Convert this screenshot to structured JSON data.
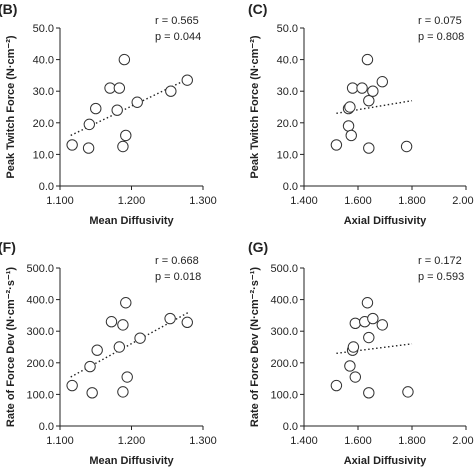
{
  "chart_data": [
    {
      "type": "scatter",
      "panel": "(B)",
      "xlabel": "Mean Diffusivity",
      "ylabel": "Peak Twitch Force (N·cm⁻²)",
      "xlim": [
        1.1,
        1.3
      ],
      "ylim": [
        0,
        50
      ],
      "x_ticks": [
        "1.100",
        "1.200",
        "1.300"
      ],
      "y_ticks": [
        "0.0",
        "10.0",
        "20.0",
        "30.0",
        "40.0",
        "50.0"
      ],
      "stats": [
        "r = 0.565",
        "p = 0.044"
      ],
      "trendline": "dotted",
      "points": [
        {
          "x": 1.117,
          "y": 13.0
        },
        {
          "x": 1.14,
          "y": 12.0
        },
        {
          "x": 1.141,
          "y": 19.5
        },
        {
          "x": 1.15,
          "y": 24.5
        },
        {
          "x": 1.17,
          "y": 31.0
        },
        {
          "x": 1.18,
          "y": 24.0
        },
        {
          "x": 1.183,
          "y": 31.0
        },
        {
          "x": 1.188,
          "y": 12.5
        },
        {
          "x": 1.19,
          "y": 40.0
        },
        {
          "x": 1.192,
          "y": 16.0
        },
        {
          "x": 1.208,
          "y": 26.5
        },
        {
          "x": 1.255,
          "y": 30.0
        },
        {
          "x": 1.278,
          "y": 33.5
        }
      ],
      "fit": [
        [
          1.115,
          16.0
        ],
        [
          1.28,
          34.0
        ]
      ]
    },
    {
      "type": "scatter",
      "panel": "(C)",
      "xlabel": "Axial Diffusivity",
      "ylabel": "Peak Twitch Force (N·cm⁻²)",
      "xlim": [
        1.4,
        2.0
      ],
      "ylim": [
        0,
        50
      ],
      "x_ticks": [
        "1.400",
        "1.600",
        "1.800",
        "2.000"
      ],
      "y_ticks": [
        "0.0",
        "10.0",
        "20.0",
        "30.0",
        "40.0",
        "50.0"
      ],
      "stats": [
        "r = 0.075",
        "p = 0.808"
      ],
      "trendline": "dotted",
      "points": [
        {
          "x": 1.52,
          "y": 13.0
        },
        {
          "x": 1.565,
          "y": 19.0
        },
        {
          "x": 1.565,
          "y": 24.5
        },
        {
          "x": 1.57,
          "y": 25.0
        },
        {
          "x": 1.575,
          "y": 16.0
        },
        {
          "x": 1.58,
          "y": 31.0
        },
        {
          "x": 1.615,
          "y": 31.0
        },
        {
          "x": 1.635,
          "y": 40.0
        },
        {
          "x": 1.64,
          "y": 27.0
        },
        {
          "x": 1.64,
          "y": 12.0
        },
        {
          "x": 1.655,
          "y": 30.0
        },
        {
          "x": 1.69,
          "y": 33.0
        },
        {
          "x": 1.78,
          "y": 12.5
        }
      ],
      "fit": [
        [
          1.52,
          23.0
        ],
        [
          1.8,
          27.0
        ]
      ]
    },
    {
      "type": "scatter",
      "panel": "(F)",
      "xlabel": "Mean Diffusivity",
      "ylabel": "Rate of Force Dev (N·cm⁻²·s⁻¹)",
      "xlim": [
        1.1,
        1.3
      ],
      "ylim": [
        0,
        500
      ],
      "x_ticks": [
        "1.100",
        "1.200",
        "1.300"
      ],
      "y_ticks": [
        "0.0",
        "100.0",
        "200.0",
        "300.0",
        "400.0",
        "500.0"
      ],
      "stats": [
        "r = 0.668",
        "p = 0.018"
      ],
      "trendline": "dotted",
      "points": [
        {
          "x": 1.117,
          "y": 128
        },
        {
          "x": 1.142,
          "y": 188
        },
        {
          "x": 1.145,
          "y": 105
        },
        {
          "x": 1.152,
          "y": 240
        },
        {
          "x": 1.172,
          "y": 330
        },
        {
          "x": 1.183,
          "y": 250
        },
        {
          "x": 1.188,
          "y": 320
        },
        {
          "x": 1.188,
          "y": 108
        },
        {
          "x": 1.192,
          "y": 390
        },
        {
          "x": 1.194,
          "y": 155
        },
        {
          "x": 1.212,
          "y": 278
        },
        {
          "x": 1.254,
          "y": 340
        },
        {
          "x": 1.278,
          "y": 328
        }
      ],
      "fit": [
        [
          1.115,
          155
        ],
        [
          1.28,
          360
        ]
      ]
    },
    {
      "type": "scatter",
      "panel": "(G)",
      "xlabel": "Axial Diffusivity",
      "ylabel": "Rate of Force Dev (N·cm⁻²·s⁻¹)",
      "xlim": [
        1.4,
        2.0
      ],
      "ylim": [
        0,
        500
      ],
      "x_ticks": [
        "1.400",
        "1.600",
        "1.800",
        "2.000"
      ],
      "y_ticks": [
        "0.0",
        "100.0",
        "200.0",
        "300.0",
        "400.0",
        "500.0"
      ],
      "stats": [
        "r = 0.172",
        "p = 0.593"
      ],
      "trendline": "dotted",
      "points": [
        {
          "x": 1.52,
          "y": 128
        },
        {
          "x": 1.57,
          "y": 190
        },
        {
          "x": 1.58,
          "y": 240
        },
        {
          "x": 1.583,
          "y": 250
        },
        {
          "x": 1.59,
          "y": 155
        },
        {
          "x": 1.59,
          "y": 325
        },
        {
          "x": 1.625,
          "y": 330
        },
        {
          "x": 1.635,
          "y": 390
        },
        {
          "x": 1.64,
          "y": 280
        },
        {
          "x": 1.64,
          "y": 105
        },
        {
          "x": 1.655,
          "y": 340
        },
        {
          "x": 1.69,
          "y": 320
        },
        {
          "x": 1.785,
          "y": 108
        }
      ],
      "fit": [
        [
          1.52,
          230
        ],
        [
          1.8,
          260
        ]
      ]
    }
  ]
}
